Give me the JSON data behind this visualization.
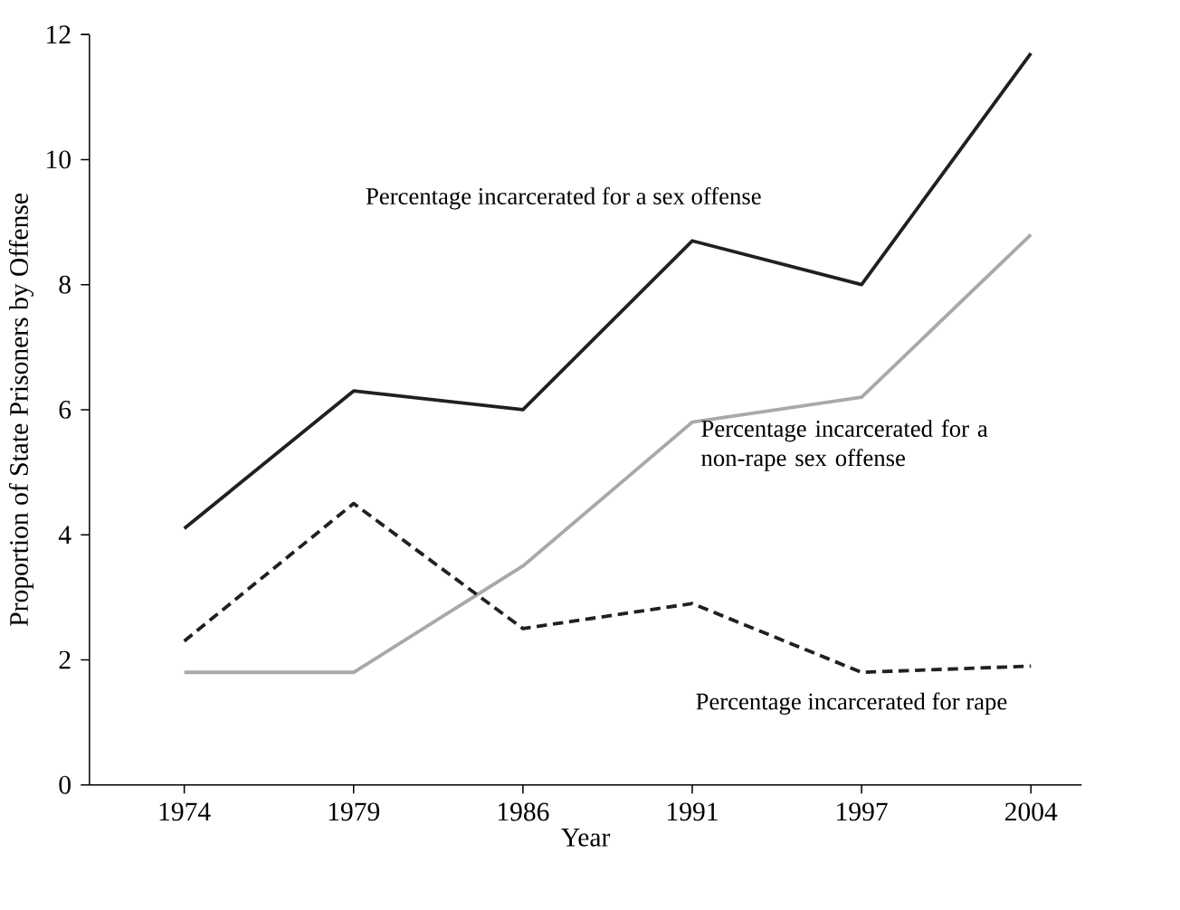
{
  "chart_data": {
    "type": "line",
    "xlabel": "Year",
    "ylabel": "Proportion of State Prisoners by Offense",
    "categories": [
      "1974",
      "1979",
      "1986",
      "1991",
      "1997",
      "2004"
    ],
    "series": [
      {
        "name": "Percentage incarcerated for a sex offense",
        "color": "#231f20",
        "line_style": "solid",
        "values": [
          4.1,
          6.3,
          6.0,
          8.7,
          8.0,
          11.7
        ]
      },
      {
        "name": "Percentage incarcerated for a non-rape sex offense",
        "color": "#a7a9ac",
        "line_style": "solid",
        "values": [
          1.8,
          1.8,
          3.5,
          5.8,
          6.2,
          8.8
        ]
      },
      {
        "name": "Percentage incarcerated for rape",
        "color": "#231f20",
        "line_style": "dashed",
        "values": [
          2.3,
          4.5,
          2.5,
          2.9,
          1.8,
          1.9
        ]
      }
    ],
    "ylim": [
      0,
      12
    ],
    "yticks": [
      0,
      2,
      4,
      6,
      8,
      10,
      12
    ],
    "grid": false,
    "legend": false,
    "marker": "none"
  }
}
